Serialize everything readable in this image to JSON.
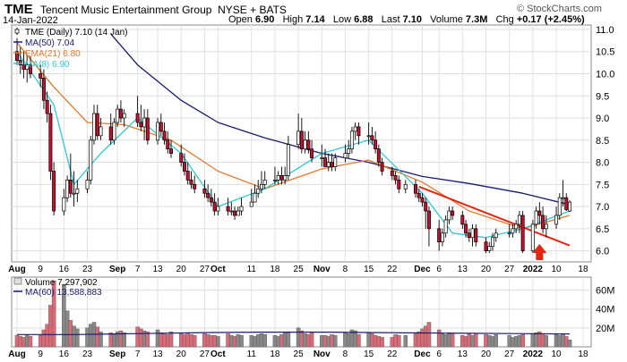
{
  "header": {
    "symbol": "TME",
    "company": "Tencent Music Entertainment Group",
    "exchange": "NYSE + BATS",
    "date": "14-Jan-2022",
    "open_label": "Open",
    "open": "6.90",
    "high_label": "High",
    "high": "7.14",
    "low_label": "Low",
    "low": "6.88",
    "last_label": "Last",
    "last": "7.10",
    "volume_label": "Volume",
    "volume": "7.3M",
    "chg_label": "Chg",
    "chg": "+0.17 (+2.45%)",
    "watermark": "© StockCharts.com"
  },
  "legend": [
    {
      "text": "TME (Daily) 7.10 (14 Jan)",
      "color": "#000000",
      "kind": "candle"
    },
    {
      "text": "MA(50) 7.04",
      "color": "#1a1a6e",
      "kind": "line"
    },
    {
      "text": "EMA(21) 6.80",
      "color": "#e07a2a",
      "kind": "line"
    },
    {
      "text": "MA(8) 6.90",
      "color": "#2cc9d8",
      "kind": "line"
    }
  ],
  "volume_legend": [
    {
      "text": "Volume 7,297,902",
      "kind": "box"
    },
    {
      "text": "MA(60) 13,588,883",
      "kind": "line",
      "color": "#1a1a6e"
    }
  ],
  "colors": {
    "up": "#ffffff",
    "down": "#c8102e",
    "vol_up": "#888888",
    "vol_down": "#d96b78",
    "ma50": "#1a1a6e",
    "ema21": "#e07a2a",
    "ma8": "#2cc9d8",
    "trendline": "#e32612",
    "arrow": "#e32612"
  },
  "chart_data": [
    {
      "type": "candlestick",
      "title": "TME (Daily) 7.10 (14 Jan)",
      "ylim": [
        5.75,
        11.1
      ],
      "y_ticks": [
        "6.0",
        "6.5",
        "7.0",
        "7.5",
        "8.0",
        "8.5",
        "9.0",
        "9.5",
        "10.0",
        "10.5",
        "11.0"
      ],
      "x_ticks": [
        "Aug",
        "9",
        "16",
        "23",
        "Sep",
        "7",
        "13",
        "20",
        "27",
        "Oct",
        "11",
        "18",
        "25",
        "Nov",
        "8",
        "15",
        "22",
        "Dec",
        "6",
        "13",
        "20",
        "27",
        "2022",
        "10",
        "18"
      ],
      "grid": true,
      "start_date": "2021-08-02",
      "dates": [
        "2021-08-02",
        "2021-08-03",
        "2021-08-04",
        "2021-08-05",
        "2021-08-06",
        "2021-08-09",
        "2021-08-10",
        "2021-08-11",
        "2021-08-12",
        "2021-08-13",
        "2021-08-16",
        "2021-08-17",
        "2021-08-18",
        "2021-08-19",
        "2021-08-20",
        "2021-08-23",
        "2021-08-24",
        "2021-08-25",
        "2021-08-26",
        "2021-08-27",
        "2021-08-30",
        "2021-08-31",
        "2021-09-01",
        "2021-09-02",
        "2021-09-03",
        "2021-09-07",
        "2021-09-08",
        "2021-09-09",
        "2021-09-10",
        "2021-09-13",
        "2021-09-14",
        "2021-09-15",
        "2021-09-16",
        "2021-09-17",
        "2021-09-20",
        "2021-09-21",
        "2021-09-22",
        "2021-09-23",
        "2021-09-24",
        "2021-09-27",
        "2021-09-28",
        "2021-09-29",
        "2021-09-30",
        "2021-10-01",
        "2021-10-04",
        "2021-10-05",
        "2021-10-06",
        "2021-10-07",
        "2021-10-08",
        "2021-10-11",
        "2021-10-12",
        "2021-10-13",
        "2021-10-14",
        "2021-10-15",
        "2021-10-18",
        "2021-10-19",
        "2021-10-20",
        "2021-10-21",
        "2021-10-22",
        "2021-10-25",
        "2021-10-26",
        "2021-10-27",
        "2021-10-28",
        "2021-10-29",
        "2021-11-01",
        "2021-11-02",
        "2021-11-03",
        "2021-11-04",
        "2021-11-05",
        "2021-11-08",
        "2021-11-09",
        "2021-11-10",
        "2021-11-11",
        "2021-11-12",
        "2021-11-15",
        "2021-11-16",
        "2021-11-17",
        "2021-11-18",
        "2021-11-19",
        "2021-11-22",
        "2021-11-23",
        "2021-11-24",
        "2021-11-26",
        "2021-11-29",
        "2021-11-30",
        "2021-12-01",
        "2021-12-02",
        "2021-12-03",
        "2021-12-06",
        "2021-12-07",
        "2021-12-08",
        "2021-12-09",
        "2021-12-10",
        "2021-12-13",
        "2021-12-14",
        "2021-12-15",
        "2021-12-16",
        "2021-12-17",
        "2021-12-20",
        "2021-12-21",
        "2021-12-22",
        "2021-12-23",
        "2021-12-27",
        "2021-12-28",
        "2021-12-29",
        "2021-12-30",
        "2021-12-31",
        "2022-01-03",
        "2022-01-04",
        "2022-01-05",
        "2022-01-06",
        "2022-01-07",
        "2022-01-10",
        "2022-01-11",
        "2022-01-12",
        "2022-01-13",
        "2022-01-14"
      ],
      "open": [
        10.5,
        10.3,
        10.2,
        10.1,
        10.2,
        10.0,
        9.9,
        9.4,
        9.1,
        7.8,
        6.9,
        7.2,
        7.6,
        7.3,
        7.3,
        7.4,
        7.6,
        8.5,
        9.1,
        8.6,
        8.8,
        8.5,
        8.9,
        9.2,
        9.0,
        9.1,
        8.9,
        8.8,
        9.0,
        8.5,
        8.9,
        8.7,
        8.5,
        8.3,
        8.2,
        8.0,
        7.8,
        7.6,
        7.5,
        7.4,
        7.3,
        7.2,
        7.1,
        6.9,
        7.0,
        6.9,
        6.9,
        6.8,
        6.9,
        7.0,
        7.1,
        7.3,
        7.4,
        7.5,
        7.6,
        7.6,
        7.7,
        7.6,
        7.7,
        8.4,
        8.7,
        8.3,
        8.5,
        8.3,
        8.1,
        8.1,
        7.9,
        8.0,
        7.9,
        8.1,
        8.2,
        8.3,
        8.7,
        8.8,
        8.6,
        8.6,
        8.5,
        8.3,
        8.0,
        7.8,
        7.7,
        7.6,
        7.4,
        7.5,
        7.3,
        7.2,
        7.1,
        6.9,
        6.5,
        6.2,
        6.4,
        6.7,
        6.9,
        6.8,
        6.6,
        6.4,
        6.3,
        6.5,
        6.2,
        6.0,
        6.1,
        6.3,
        6.4,
        6.4,
        6.5,
        6.6,
        6.8,
        6.0,
        6.6,
        6.9,
        6.8,
        6.5,
        6.6,
        6.8,
        7.2,
        7.2,
        6.9
      ],
      "high": [
        10.8,
        10.6,
        10.5,
        10.4,
        10.4,
        10.2,
        10.1,
        9.6,
        9.3,
        8.0,
        7.4,
        7.7,
        8.2,
        7.8,
        7.6,
        7.8,
        8.6,
        9.3,
        9.3,
        9.0,
        9.1,
        9.0,
        9.3,
        9.4,
        9.2,
        9.5,
        9.3,
        9.2,
        9.2,
        9.0,
        9.1,
        8.9,
        8.7,
        8.5,
        8.4,
        8.2,
        8.0,
        7.8,
        7.7,
        7.6,
        7.5,
        7.4,
        7.3,
        7.2,
        7.2,
        7.1,
        7.0,
        7.0,
        7.2,
        7.4,
        7.5,
        7.6,
        7.8,
        7.8,
        7.9,
        7.8,
        7.9,
        7.9,
        8.6,
        9.1,
        9.0,
        8.7,
        8.7,
        8.5,
        8.4,
        8.3,
        8.2,
        8.2,
        8.2,
        8.4,
        8.5,
        8.8,
        8.9,
        8.9,
        8.9,
        8.8,
        8.7,
        8.4,
        8.1,
        7.9,
        7.8,
        7.7,
        7.6,
        7.6,
        7.4,
        7.3,
        7.2,
        7.0,
        6.7,
        6.5,
        6.8,
        7.0,
        7.0,
        6.9,
        6.7,
        6.5,
        6.6,
        6.6,
        6.3,
        6.2,
        6.4,
        6.5,
        6.6,
        6.6,
        6.7,
        6.9,
        6.9,
        6.7,
        7.0,
        7.1,
        7.0,
        6.8,
        7.0,
        7.3,
        7.6,
        7.3,
        7.14
      ],
      "low": [
        10.2,
        10.0,
        9.9,
        9.8,
        9.9,
        9.7,
        9.2,
        8.9,
        7.6,
        6.8,
        6.8,
        7.1,
        7.2,
        7.0,
        7.1,
        7.3,
        7.5,
        8.4,
        8.5,
        8.5,
        8.4,
        8.4,
        8.8,
        8.9,
        8.8,
        8.8,
        8.7,
        8.5,
        8.4,
        8.4,
        8.6,
        8.4,
        8.2,
        8.1,
        7.9,
        7.7,
        7.5,
        7.4,
        7.3,
        7.2,
        7.1,
        7.0,
        6.8,
        6.8,
        6.8,
        6.8,
        6.7,
        6.8,
        6.8,
        7.0,
        7.1,
        7.2,
        7.3,
        7.4,
        7.5,
        7.5,
        7.5,
        7.5,
        7.6,
        8.3,
        8.2,
        8.2,
        8.2,
        8.0,
        7.9,
        7.9,
        7.8,
        7.8,
        7.8,
        8.0,
        8.1,
        8.2,
        8.5,
        8.4,
        8.4,
        8.4,
        8.2,
        7.9,
        7.7,
        7.6,
        7.5,
        7.3,
        7.3,
        7.2,
        7.1,
        7.0,
        6.5,
        6.1,
        6.0,
        6.1,
        6.3,
        6.6,
        6.7,
        6.5,
        6.3,
        6.2,
        6.1,
        6.1,
        5.95,
        5.95,
        6.0,
        6.2,
        6.3,
        6.3,
        6.4,
        6.4,
        5.95,
        5.95,
        6.5,
        6.6,
        6.4,
        6.3,
        6.5,
        6.7,
        7.0,
        6.9,
        6.88
      ],
      "close": [
        10.3,
        10.2,
        10.1,
        10.2,
        10.0,
        9.9,
        9.4,
        9.1,
        7.8,
        6.9,
        7.2,
        7.6,
        7.3,
        7.3,
        7.4,
        7.6,
        8.5,
        9.1,
        8.6,
        8.8,
        8.5,
        8.9,
        9.2,
        9.0,
        9.1,
        8.9,
        8.8,
        9.0,
        8.5,
        8.9,
        8.7,
        8.5,
        8.3,
        8.2,
        8.0,
        7.8,
        7.6,
        7.5,
        7.4,
        7.3,
        7.2,
        7.1,
        6.9,
        7.0,
        6.9,
        6.9,
        6.8,
        6.9,
        7.0,
        7.1,
        7.3,
        7.4,
        7.5,
        7.6,
        7.6,
        7.7,
        7.6,
        7.7,
        8.4,
        8.7,
        8.3,
        8.5,
        8.3,
        8.1,
        8.1,
        7.9,
        8.0,
        7.9,
        8.1,
        8.2,
        8.3,
        8.7,
        8.8,
        8.6,
        8.6,
        8.5,
        8.3,
        8.0,
        7.8,
        7.7,
        7.6,
        7.4,
        7.5,
        7.3,
        7.2,
        7.1,
        6.9,
        6.5,
        6.2,
        6.4,
        6.7,
        6.9,
        6.8,
        6.6,
        6.4,
        6.3,
        6.5,
        6.2,
        6.0,
        6.1,
        6.3,
        6.4,
        6.4,
        6.5,
        6.6,
        6.8,
        6.0,
        6.6,
        6.9,
        6.8,
        6.5,
        6.6,
        6.8,
        7.2,
        7.2,
        6.93,
        7.1
      ],
      "series": [
        {
          "name": "MA(50) 7.04",
          "x": [
            "2021-08-30",
            "2021-09-07",
            "2021-09-20",
            "2021-10-01",
            "2021-10-15",
            "2021-11-01",
            "2021-11-15",
            "2021-12-01",
            "2021-12-15",
            "2021-12-31",
            "2022-01-14"
          ],
          "values": [
            10.9,
            10.2,
            9.4,
            8.9,
            8.55,
            8.2,
            8.0,
            7.68,
            7.52,
            7.3,
            7.04
          ]
        },
        {
          "name": "EMA(21) 6.80",
          "x": [
            "2021-08-02",
            "2021-08-13",
            "2021-08-23",
            "2021-09-03",
            "2021-09-17",
            "2021-10-01",
            "2021-10-15",
            "2021-11-01",
            "2021-11-15",
            "2021-12-01",
            "2021-12-15",
            "2021-12-31",
            "2022-01-14"
          ],
          "values": [
            10.7,
            9.7,
            8.9,
            8.85,
            8.5,
            7.8,
            7.4,
            7.85,
            8.05,
            7.55,
            6.9,
            6.5,
            6.8
          ]
        },
        {
          "name": "MA(8) 6.90",
          "x": [
            "2021-08-02",
            "2021-08-13",
            "2021-08-19",
            "2021-08-27",
            "2021-09-07",
            "2021-09-20",
            "2021-10-01",
            "2021-10-15",
            "2021-11-01",
            "2021-11-15",
            "2021-12-01",
            "2021-12-10",
            "2021-12-20",
            "2021-12-31",
            "2022-01-14"
          ],
          "values": [
            10.5,
            9.3,
            7.5,
            8.2,
            9.0,
            8.2,
            7.0,
            7.4,
            8.2,
            8.5,
            7.3,
            6.4,
            6.3,
            6.5,
            6.9
          ]
        },
        {
          "name": "trendline",
          "x": [
            "2021-11-30",
            "2022-01-14"
          ],
          "values": [
            7.45,
            6.12
          ]
        }
      ]
    },
    {
      "type": "bar",
      "title": "Volume 7,297,902",
      "ylim": [
        0,
        70
      ],
      "unit": "M",
      "y_ticks": [
        "20M",
        "40M",
        "60M"
      ],
      "dates_ref": "same as price chart",
      "values": [
        12,
        11,
        10,
        13,
        11,
        12,
        18,
        24,
        44,
        70,
        66,
        38,
        28,
        22,
        19,
        20,
        24,
        26,
        21,
        16,
        15,
        14,
        16,
        17,
        15,
        21,
        19,
        17,
        16,
        18,
        15,
        14,
        13,
        16,
        14,
        13,
        15,
        13,
        12,
        14,
        13,
        12,
        12,
        11,
        14,
        12,
        11,
        13,
        12,
        12,
        11,
        13,
        14,
        13,
        12,
        11,
        13,
        15,
        16,
        20,
        17,
        14,
        13,
        16,
        12,
        12,
        11,
        13,
        12,
        15,
        14,
        18,
        17,
        13,
        15,
        14,
        12,
        11,
        10,
        10,
        13,
        12,
        12,
        14,
        16,
        19,
        22,
        26,
        18,
        14,
        13,
        15,
        14,
        12,
        11,
        14,
        12,
        14,
        13,
        12,
        11,
        13,
        12,
        10,
        11,
        12,
        13,
        14,
        15,
        16,
        14,
        12,
        13,
        12,
        14,
        11,
        7.3
      ],
      "ma60": [
        13,
        13,
        14,
        15,
        15.5,
        15.5,
        15,
        14.5,
        14,
        13.6
      ]
    }
  ]
}
